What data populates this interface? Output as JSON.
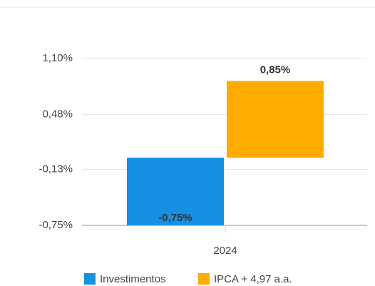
{
  "chart_data": {
    "type": "bar",
    "categories": [
      "2024"
    ],
    "series": [
      {
        "name": "Investimentos",
        "color": "#1690e2",
        "values": [
          -0.75
        ],
        "value_labels": [
          "-0,75%"
        ]
      },
      {
        "name": "IPCA + 4,97 a.a.",
        "color": "#ffab00",
        "values": [
          0.85
        ],
        "value_labels": [
          "0,85%"
        ]
      }
    ],
    "ylim": [
      -0.75,
      1.1
    ],
    "yticks": [
      {
        "value": -0.75,
        "label": "-0,75%"
      },
      {
        "value": -0.13,
        "label": "-0,13%"
      },
      {
        "value": 0.48,
        "label": "0,48%"
      },
      {
        "value": 1.1,
        "label": "1,10%"
      }
    ],
    "grid": true
  }
}
